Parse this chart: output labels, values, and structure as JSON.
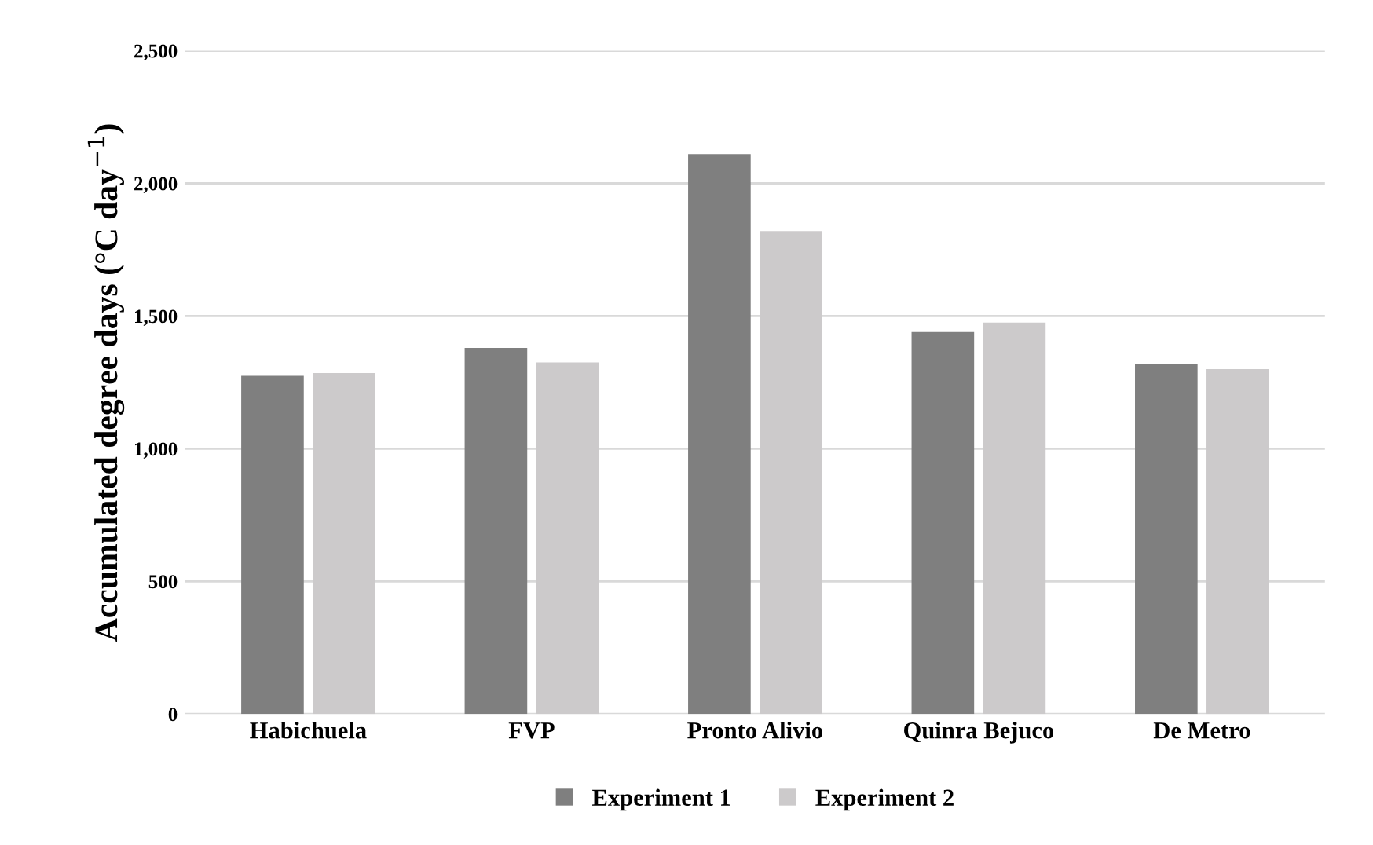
{
  "chart_data": {
    "type": "bar",
    "ylabel": "Accumulated degree days (°C day$^{−1}$)",
    "categories": [
      "Habichuela",
      "FVP",
      "Pronto Alivio",
      "Quinra Bejuco",
      "De Metro"
    ],
    "series": [
      {
        "name": "Experiment 1",
        "color": "#7f7f7f",
        "values": [
          1275,
          1380,
          2110,
          1440,
          1320
        ]
      },
      {
        "name": "Experiment 2",
        "color": "#cccacb",
        "values": [
          1285,
          1325,
          1820,
          1475,
          1300
        ]
      }
    ],
    "ylim": [
      0,
      2500
    ],
    "yticks": [
      {
        "value": 0,
        "label": "0"
      },
      {
        "value": 500,
        "label": "500"
      },
      {
        "value": 1000,
        "label": "1,000"
      },
      {
        "value": 1500,
        "label": "1,500"
      },
      {
        "value": 2000,
        "label": "2,000"
      },
      {
        "value": 2500,
        "label": "2,500"
      }
    ],
    "grid": "y",
    "legend": "bottom"
  }
}
